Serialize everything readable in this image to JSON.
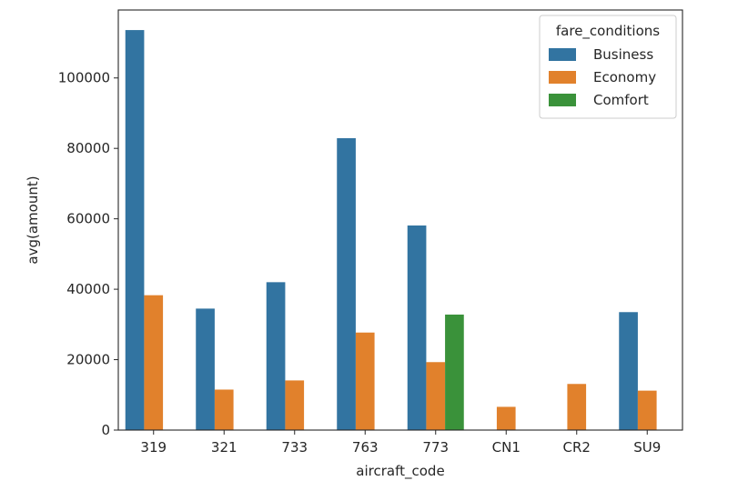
{
  "chart_data": {
    "type": "bar",
    "title": "",
    "xlabel": "aircraft_code",
    "ylabel": "avg(amount)",
    "categories": [
      "319",
      "321",
      "733",
      "763",
      "773",
      "CN1",
      "CR2",
      "SU9"
    ],
    "series": [
      {
        "name": "Business",
        "color": "#3274a1",
        "values": [
          113600,
          34500,
          42000,
          82900,
          58100,
          null,
          null,
          33500
        ]
      },
      {
        "name": "Economy",
        "color": "#e1812c",
        "values": [
          38300,
          11500,
          14100,
          27700,
          19300,
          6600,
          13100,
          11200
        ]
      },
      {
        "name": "Comfort",
        "color": "#3a923a",
        "values": [
          null,
          null,
          null,
          null,
          32800,
          null,
          null,
          null
        ]
      }
    ],
    "ylim": [
      0,
      119300
    ],
    "yticks": [
      0,
      20000,
      40000,
      60000,
      80000,
      100000
    ],
    "ytick_labels": [
      "0",
      "20000",
      "40000",
      "60000",
      "80000",
      "100000"
    ],
    "grid": false,
    "legend": {
      "title": "fare_conditions",
      "position": "top-right"
    }
  }
}
